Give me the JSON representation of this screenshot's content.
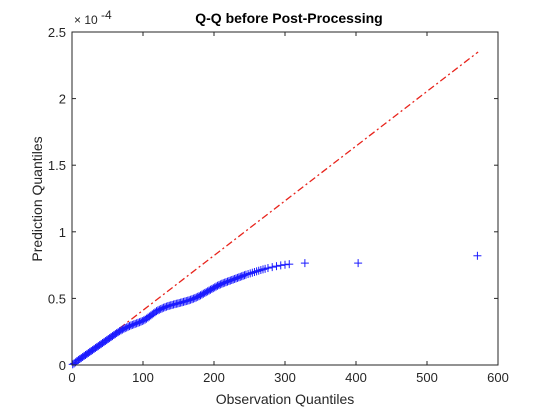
{
  "chart_data": {
    "type": "scatter",
    "title": "Q-Q before Post-Processing",
    "xlabel": "Observation Quantiles",
    "ylabel": "Prediction Quantiles",
    "y_exponent_label": "× 10",
    "y_exponent_power": "-4",
    "xlim": [
      0,
      600
    ],
    "ylim": [
      0,
      2.5
    ],
    "y_scale_note": "values in units of 1e-4",
    "x_ticks": [
      0,
      100,
      200,
      300,
      400,
      500,
      600
    ],
    "y_ticks": [
      0,
      0.5,
      1,
      1.5,
      2,
      2.5
    ],
    "x_tick_labels": [
      "0",
      "100",
      "200",
      "300",
      "400",
      "500",
      "600"
    ],
    "y_tick_labels": [
      "0",
      "0.5",
      "1",
      "1.5",
      "2",
      "2.5"
    ],
    "grid": false,
    "marker": "+",
    "marker_color": "#1a1aff",
    "reference_line": {
      "style": "dash-dot",
      "color": "#e8241c",
      "from": [
        0,
        0
      ],
      "to": [
        572,
        2.35
      ]
    },
    "series": [
      {
        "points": [
          [
            1,
            0.005
          ],
          [
            3,
            0.012
          ],
          [
            5,
            0.02
          ],
          [
            7,
            0.03
          ],
          [
            9,
            0.038
          ],
          [
            11,
            0.045
          ],
          [
            13,
            0.052
          ],
          [
            15,
            0.06
          ],
          [
            17,
            0.068
          ],
          [
            19,
            0.075
          ],
          [
            21,
            0.082
          ],
          [
            23,
            0.09
          ],
          [
            25,
            0.098
          ],
          [
            27,
            0.105
          ],
          [
            29,
            0.112
          ],
          [
            31,
            0.12
          ],
          [
            33,
            0.128
          ],
          [
            35,
            0.135
          ],
          [
            37,
            0.142
          ],
          [
            39,
            0.15
          ],
          [
            41,
            0.157
          ],
          [
            43,
            0.165
          ],
          [
            45,
            0.172
          ],
          [
            47,
            0.18
          ],
          [
            49,
            0.187
          ],
          [
            51,
            0.195
          ],
          [
            53,
            0.202
          ],
          [
            55,
            0.21
          ],
          [
            57,
            0.217
          ],
          [
            59,
            0.225
          ],
          [
            61,
            0.232
          ],
          [
            63,
            0.24
          ],
          [
            65,
            0.247
          ],
          [
            67,
            0.254
          ],
          [
            69,
            0.26
          ],
          [
            71,
            0.266
          ],
          [
            73,
            0.272
          ],
          [
            75,
            0.277
          ],
          [
            77,
            0.282
          ],
          [
            79,
            0.287
          ],
          [
            81,
            0.292
          ],
          [
            83,
            0.297
          ],
          [
            85,
            0.301
          ],
          [
            87,
            0.305
          ],
          [
            89,
            0.309
          ],
          [
            91,
            0.313
          ],
          [
            93,
            0.317
          ],
          [
            95,
            0.321
          ],
          [
            97,
            0.325
          ],
          [
            99,
            0.33
          ],
          [
            101,
            0.335
          ],
          [
            103,
            0.341
          ],
          [
            105,
            0.348
          ],
          [
            107,
            0.356
          ],
          [
            109,
            0.364
          ],
          [
            111,
            0.372
          ],
          [
            113,
            0.38
          ],
          [
            115,
            0.388
          ],
          [
            117,
            0.396
          ],
          [
            119,
            0.404
          ],
          [
            121,
            0.41
          ],
          [
            123,
            0.415
          ],
          [
            125,
            0.42
          ],
          [
            127,
            0.425
          ],
          [
            129,
            0.43
          ],
          [
            131,
            0.434
          ],
          [
            133,
            0.438
          ],
          [
            135,
            0.442
          ],
          [
            137,
            0.445
          ],
          [
            139,
            0.448
          ],
          [
            141,
            0.451
          ],
          [
            143,
            0.454
          ],
          [
            145,
            0.457
          ],
          [
            147,
            0.46
          ],
          [
            149,
            0.462
          ],
          [
            151,
            0.465
          ],
          [
            153,
            0.468
          ],
          [
            155,
            0.471
          ],
          [
            157,
            0.474
          ],
          [
            159,
            0.477
          ],
          [
            161,
            0.48
          ],
          [
            163,
            0.483
          ],
          [
            165,
            0.486
          ],
          [
            167,
            0.49
          ],
          [
            169,
            0.494
          ],
          [
            171,
            0.498
          ],
          [
            173,
            0.502
          ],
          [
            175,
            0.507
          ],
          [
            177,
            0.512
          ],
          [
            179,
            0.517
          ],
          [
            181,
            0.523
          ],
          [
            183,
            0.529
          ],
          [
            185,
            0.535
          ],
          [
            187,
            0.541
          ],
          [
            189,
            0.547
          ],
          [
            191,
            0.553
          ],
          [
            193,
            0.559
          ],
          [
            195,
            0.565
          ],
          [
            197,
            0.571
          ],
          [
            199,
            0.577
          ],
          [
            201,
            0.583
          ],
          [
            203,
            0.589
          ],
          [
            205,
            0.595
          ],
          [
            207,
            0.6
          ],
          [
            209,
            0.605
          ],
          [
            211,
            0.61
          ],
          [
            213,
            0.614
          ],
          [
            215,
            0.618
          ],
          [
            217,
            0.622
          ],
          [
            219,
            0.626
          ],
          [
            221,
            0.63
          ],
          [
            223,
            0.634
          ],
          [
            225,
            0.638
          ],
          [
            227,
            0.642
          ],
          [
            229,
            0.646
          ],
          [
            231,
            0.65
          ],
          [
            233,
            0.654
          ],
          [
            235,
            0.658
          ],
          [
            237,
            0.662
          ],
          [
            239,
            0.666
          ],
          [
            241,
            0.67
          ],
          [
            243,
            0.674
          ],
          [
            245,
            0.678
          ],
          [
            248,
            0.683
          ],
          [
            251,
            0.688
          ],
          [
            254,
            0.693
          ],
          [
            257,
            0.698
          ],
          [
            260,
            0.703
          ],
          [
            263,
            0.708
          ],
          [
            266,
            0.713
          ],
          [
            269,
            0.718
          ],
          [
            272,
            0.722
          ],
          [
            276,
            0.728
          ],
          [
            282,
            0.735
          ],
          [
            288,
            0.742
          ],
          [
            294,
            0.748
          ],
          [
            300,
            0.753
          ],
          [
            306,
            0.757
          ],
          [
            328,
            0.765
          ],
          [
            403,
            0.765
          ],
          [
            571,
            0.82
          ]
        ]
      }
    ]
  }
}
